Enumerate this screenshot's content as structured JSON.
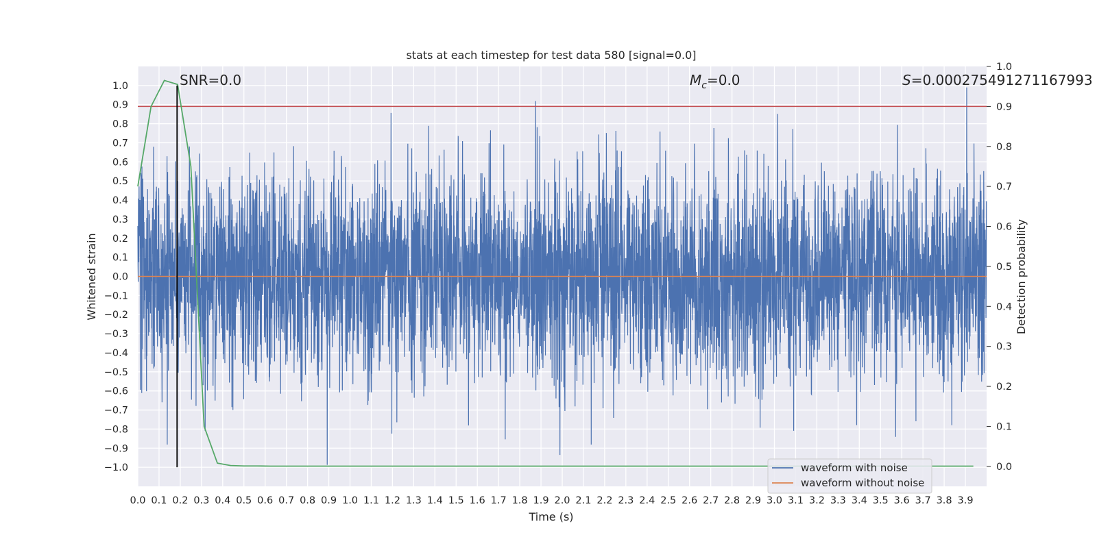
{
  "chart_data": {
    "type": "line",
    "title": "stats at each timestep for test data 580 [signal=0.0]",
    "xlabel": "Time (s)",
    "ylabel": "Whitened strain",
    "y2label": "Detection probability",
    "xlim": [
      0.0,
      4.0
    ],
    "ylim": [
      -1.1,
      1.1
    ],
    "y2lim": [
      -0.05,
      1.0
    ],
    "grid": true,
    "legend_position": "lower-right",
    "x_ticks": [
      "0.0",
      "0.1",
      "0.2",
      "0.3",
      "0.4",
      "0.5",
      "0.6",
      "0.7",
      "0.8",
      "0.9",
      "1.0",
      "1.1",
      "1.2",
      "1.3",
      "1.4",
      "1.5",
      "1.6",
      "1.7",
      "1.8",
      "1.9",
      "2.0",
      "2.1",
      "2.2",
      "2.3",
      "2.4",
      "2.5",
      "2.6",
      "2.7",
      "2.8",
      "2.9",
      "3.0",
      "3.1",
      "3.2",
      "3.3",
      "3.4",
      "3.5",
      "3.6",
      "3.7",
      "3.8",
      "3.9"
    ],
    "y_ticks": [
      "1.0",
      "0.9",
      "0.8",
      "0.7",
      "0.6",
      "0.5",
      "0.4",
      "0.3",
      "0.2",
      "0.1",
      "0.0",
      "−0.1",
      "−0.2",
      "−0.3",
      "−0.4",
      "−0.5",
      "−0.6",
      "−0.7",
      "−0.8",
      "−0.9",
      "−1.0"
    ],
    "y2_ticks": [
      "1.0",
      "0.9",
      "0.8",
      "0.7",
      "0.6",
      "0.5",
      "0.4",
      "0.3",
      "0.2",
      "0.1",
      "0.0"
    ],
    "annotations": {
      "snr": "SNR=0.0",
      "mc_symbol": "M",
      "mc_subscript": "c",
      "mc_value": "=0.0",
      "s_symbol": "S",
      "s_value": "=0.000275491271167993"
    },
    "legend": {
      "noise_label": "waveform with noise",
      "clean_label": "waveform without noise"
    },
    "colors": {
      "noise": "#4c72b0",
      "clean": "#dd8452",
      "probability": "#55a868",
      "threshold": "#c44e52",
      "marker": "#000000",
      "background": "#eaeaf2"
    },
    "threshold_y2": 0.9,
    "marker_x": 0.185,
    "noise_series": {
      "sample_rate_hz": 1024,
      "duration_s": 4.0,
      "approx_std": 0.28,
      "approx_min": -1.02,
      "approx_max": 0.99
    },
    "clean_series": {
      "x": [
        0.0,
        4.0
      ],
      "y": [
        0.0,
        0.0
      ]
    },
    "probability_series": {
      "x": [
        0.0,
        0.0625,
        0.125,
        0.1875,
        0.25,
        0.3125,
        0.375,
        0.4375,
        0.5,
        0.5625,
        0.625,
        0.75,
        1.0,
        1.5,
        2.0,
        2.5,
        3.0,
        3.5,
        3.9375
      ],
      "y": [
        0.7,
        0.9,
        0.965,
        0.955,
        0.75,
        0.1,
        0.008,
        0.002,
        0.001,
        0.001,
        0.0005,
        0.0005,
        0.0005,
        0.0005,
        0.0005,
        0.0005,
        0.0005,
        0.0005,
        0.0005
      ]
    }
  }
}
